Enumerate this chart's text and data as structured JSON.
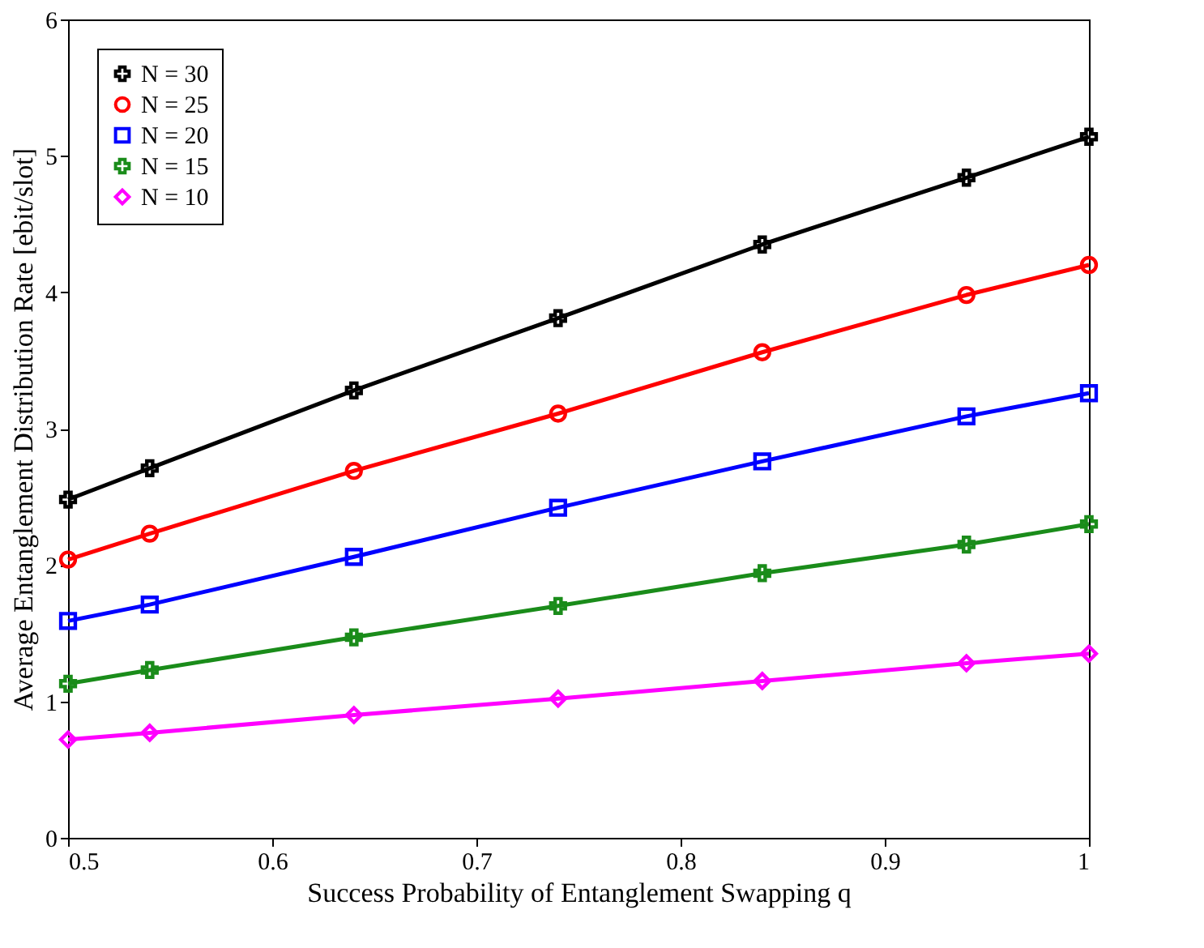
{
  "chart_data": {
    "type": "line",
    "xlabel": "Success Probability of Entanglement Swapping q",
    "ylabel": "Average Entanglement Distribution Rate [ebit/slot]",
    "x": [
      0.5,
      0.54,
      0.64,
      0.74,
      0.84,
      0.94,
      1.0
    ],
    "series": [
      {
        "name": "N = 30",
        "color": "#000000",
        "marker": "cross",
        "values": [
          2.48,
          2.71,
          3.28,
          3.81,
          4.35,
          4.84,
          5.14
        ]
      },
      {
        "name": "N = 25",
        "color": "#ff0000",
        "marker": "circle",
        "values": [
          2.04,
          2.23,
          2.69,
          3.11,
          3.56,
          3.98,
          4.2
        ]
      },
      {
        "name": "N = 20",
        "color": "#0000ff",
        "marker": "square",
        "values": [
          1.59,
          1.71,
          2.06,
          2.42,
          2.76,
          3.09,
          3.26
        ]
      },
      {
        "name": "N = 15",
        "color": "#1a8c1a",
        "marker": "cross",
        "values": [
          1.13,
          1.23,
          1.47,
          1.7,
          1.94,
          2.15,
          2.3
        ]
      },
      {
        "name": "N = 10",
        "color": "#ff00ff",
        "marker": "diamond",
        "values": [
          0.72,
          0.77,
          0.9,
          1.02,
          1.15,
          1.28,
          1.35
        ]
      }
    ],
    "xlim": [
      0.5,
      1
    ],
    "xticks": [
      0.5,
      0.6,
      0.7,
      0.8,
      0.9,
      1
    ],
    "ylim": [
      0,
      6
    ],
    "yticks": [
      0,
      1,
      2,
      3,
      4,
      5,
      6
    ],
    "grid": false,
    "legend": "top left",
    "line_style": "solid"
  }
}
